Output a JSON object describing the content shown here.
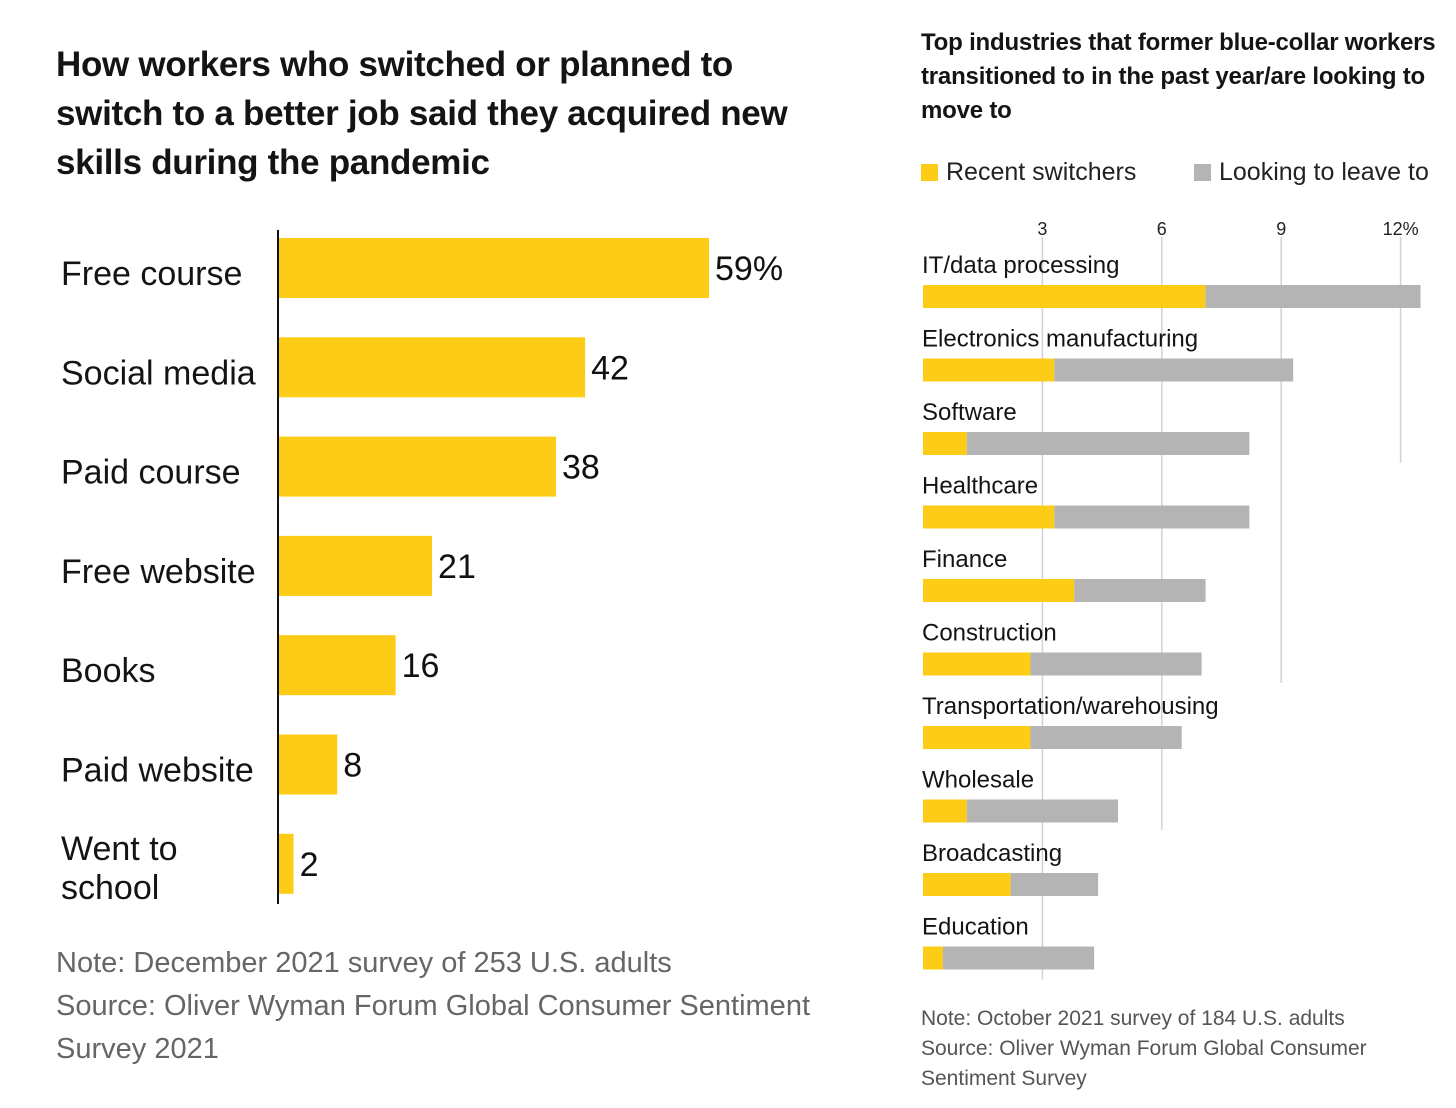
{
  "left_chart": {
    "title": "How workers who switched or planned to switch to a better job said they acquired new skills during the pandemic",
    "notes": [
      "Note: December 2021 survey of 253 U.S. adults",
      "Source: Oliver Wyman Forum Global Consumer Sentiment Survey 2021"
    ]
  },
  "right_chart": {
    "title": "Top industries that former blue-collar workers transitioned to in the past year/are looking to move to",
    "legend": [
      {
        "label": "Recent switchers",
        "color": "#FCCC16"
      },
      {
        "label": "Looking to leave to",
        "color": "#B4B4B4"
      }
    ],
    "notes": [
      "Note: October 2021 survey of 184 U.S. adults",
      "Source: Oliver Wyman Forum Global Consumer Sentiment Survey"
    ]
  },
  "chart_data": [
    {
      "type": "bar",
      "orientation": "horizontal",
      "title": "How workers who switched or planned to switch to a better job said they acquired new skills during the pandemic",
      "categories": [
        "Free course",
        "Social media",
        "Paid course",
        "Free website",
        "Books",
        "Paid website",
        "Went to school"
      ],
      "values": [
        59,
        42,
        38,
        21,
        16,
        8,
        2
      ],
      "value_labels": [
        "59%",
        "42",
        "38",
        "21",
        "16",
        "8",
        "2"
      ],
      "unit": "%",
      "xlim": [
        0,
        59
      ],
      "color": "#FCCC16"
    },
    {
      "type": "bar",
      "orientation": "horizontal",
      "stacked": true,
      "title": "Top industries that former blue-collar workers transitioned to in the past year/are looking to move to",
      "categories": [
        "IT/data processing",
        "Electronics manufacturing",
        "Software",
        "Healthcare",
        "Finance",
        "Construction",
        "Transportation/warehousing",
        "Wholesale",
        "Broadcasting",
        "Education"
      ],
      "series": [
        {
          "name": "Recent switchers",
          "color": "#FCCC16",
          "values": [
            7.1,
            3.3,
            1.1,
            3.3,
            3.8,
            2.7,
            2.7,
            1.1,
            2.2,
            0.5
          ]
        },
        {
          "name": "Looking to leave to",
          "color": "#B4B4B4",
          "values": [
            5.4,
            6.0,
            7.1,
            4.9,
            3.3,
            4.3,
            3.8,
            3.8,
            2.2,
            3.8
          ]
        }
      ],
      "xlim": [
        0,
        12.5
      ],
      "ticks": [
        3,
        6,
        9,
        12
      ],
      "tick_labels": [
        "3",
        "6",
        "9",
        "12%"
      ],
      "grid": true
    }
  ]
}
